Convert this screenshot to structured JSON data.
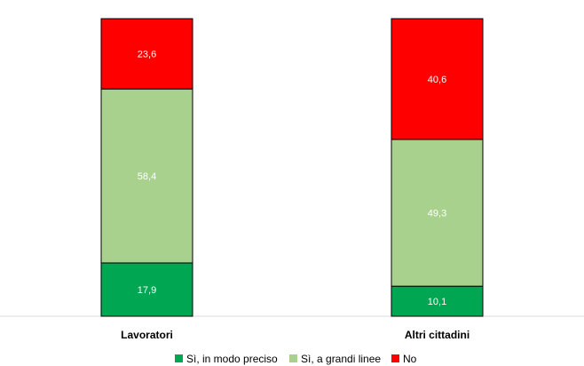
{
  "chart_data": {
    "type": "bar",
    "stacked": true,
    "percent_stacked": true,
    "categories": [
      "Lavoratori",
      "Altri cittadini"
    ],
    "series": [
      {
        "name": "Sì, in modo preciso",
        "values": [
          17.9,
          10.1
        ],
        "color": "#00a651"
      },
      {
        "name": "Sì, a grandi linee",
        "values": [
          58.4,
          49.3
        ],
        "color": "#a9d18e"
      },
      {
        "name": "No",
        "values": [
          23.6,
          40.6
        ],
        "color": "#ff0000"
      }
    ],
    "data_labels": [
      [
        "17,9",
        "10,1"
      ],
      [
        "58,4",
        "49,3"
      ],
      [
        "23,6",
        "40,6"
      ]
    ],
    "ylim": [
      0,
      100
    ],
    "grid": false,
    "legend_position": "bottom",
    "title": "",
    "xlabel": "",
    "ylabel": ""
  }
}
